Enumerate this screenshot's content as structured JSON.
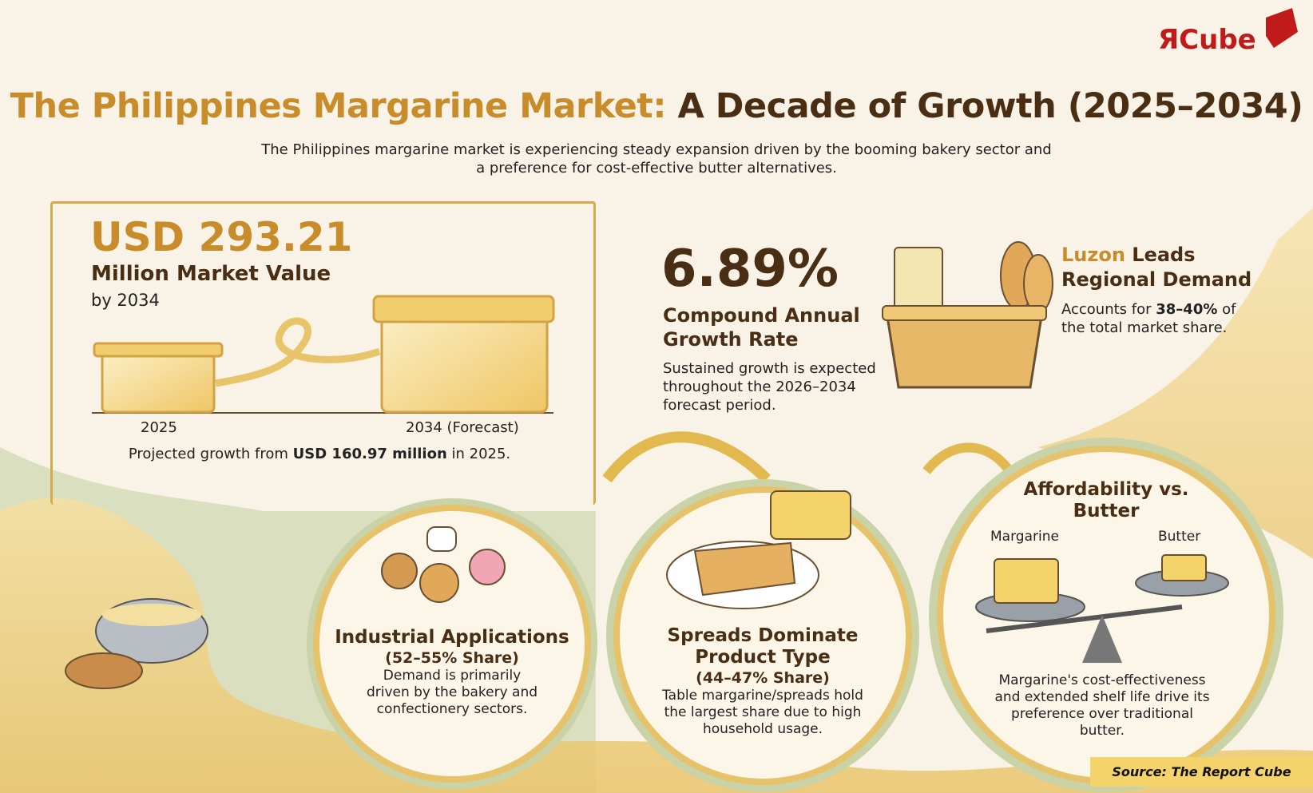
{
  "logo": {
    "text": "ЯCube"
  },
  "header": {
    "title_part1": "The Philippines Margarine Market:",
    "title_part2": "A Decade of Growth (2025–2034)",
    "subtitle": "The Philippines margarine market is experiencing steady expansion driven by the booming bakery sector and a preference for cost-effective butter alternatives."
  },
  "market_value": {
    "value": "USD 293.21",
    "label": "Million Market Value",
    "year_label": "by 2034",
    "bar_2025": "2025",
    "bar_2034": "2034 (Forecast)",
    "note_prefix": "Projected growth from ",
    "note_bold": "USD 160.97 million",
    "note_suffix": " in 2025."
  },
  "cagr": {
    "value": "6.89%",
    "label": "Compound Annual Growth Rate",
    "description": "Sustained growth is expected throughout the 2026–2034 forecast period."
  },
  "region": {
    "title_highlight": "Luzon",
    "title_rest": " Leads",
    "title_line2": "Regional Demand",
    "desc_prefix": "Accounts for ",
    "desc_bold": "38–40%",
    "desc_suffix": " of the total market share."
  },
  "circles": [
    {
      "title": "Industrial Applications",
      "share": "(52–55% Share)",
      "description": "Demand is primarily driven by the bakery and confectionery sectors."
    },
    {
      "title": "Spreads Dominate Product Type",
      "share": "(44–47% Share)",
      "description": "Table margarine/spreads hold the largest share due to high household usage."
    },
    {
      "title": "Affordability vs. Butter",
      "label_left": "Margarine",
      "label_right": "Butter",
      "description": "Margarine's cost-effectiveness and extended shelf life drive its preference over traditional butter."
    }
  ],
  "source": "Source: The Report Cube",
  "colors": {
    "accent": "#c98c2a",
    "dark_brown": "#4a2e14",
    "cream": "#f8f3e6",
    "butter": "#f3d36a",
    "logo_red": "#c11a1a",
    "green": "#b9c79a"
  }
}
